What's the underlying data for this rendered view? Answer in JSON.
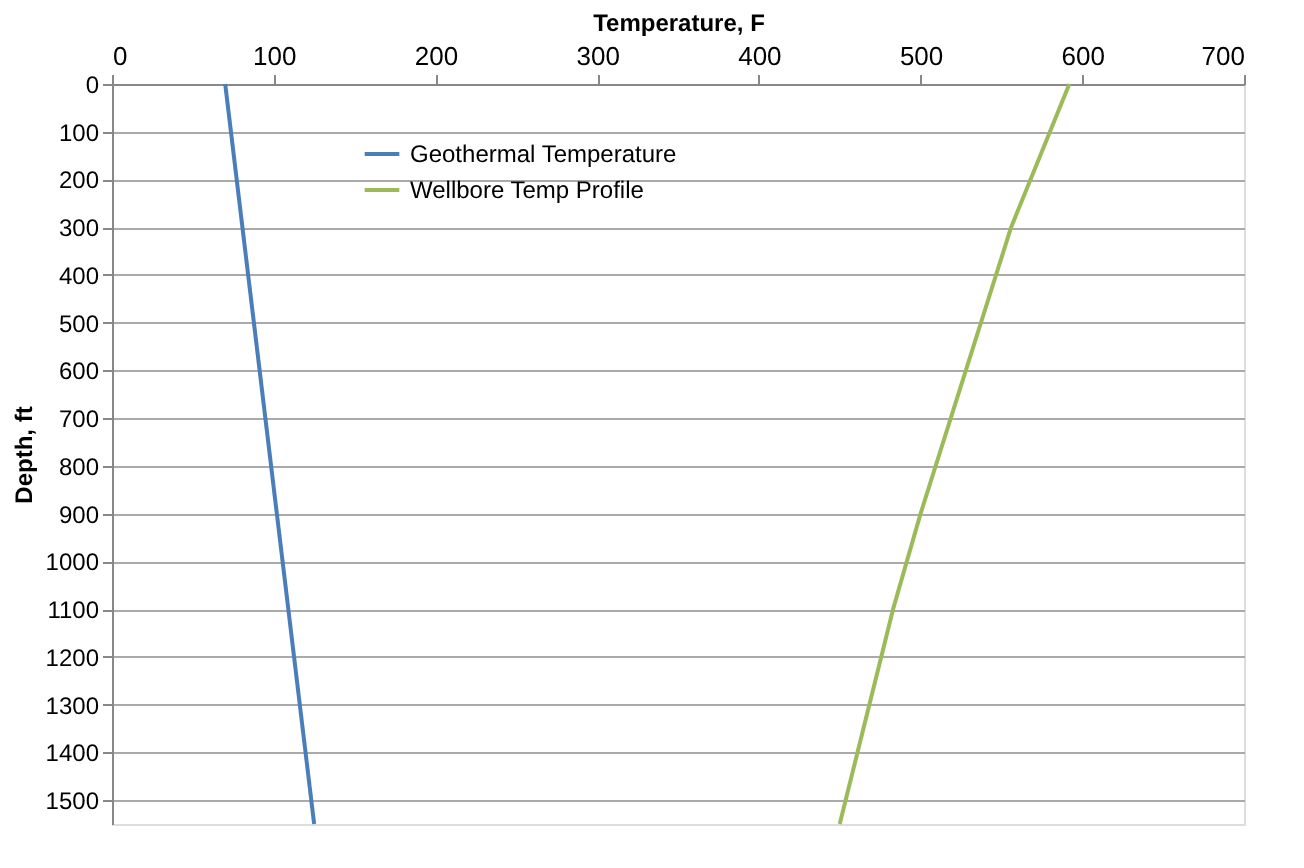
{
  "chart_data": {
    "type": "line",
    "xlabel": "Temperature, F",
    "ylabel": "Depth, ft",
    "xlim": [
      0,
      700
    ],
    "xticks": [
      0,
      100,
      200,
      300,
      400,
      500,
      600,
      700
    ],
    "ylim": [
      1550,
      0
    ],
    "yticks": [
      0,
      100,
      200,
      300,
      400,
      500,
      600,
      700,
      800,
      900,
      1000,
      1100,
      1200,
      1300,
      1400,
      1500
    ],
    "grid": "y",
    "legend": "top left",
    "marker": "none",
    "line_style": "solid",
    "series": [
      {
        "name": "Geothermal Temperature",
        "color": "#4a7ebb",
        "x": [
          70,
          125
        ],
        "values": [
          0,
          1550
        ]
      },
      {
        "name": "Wellbore Temp Profile",
        "color": "#9bbb59",
        "x": [
          592,
          556,
          528,
          500,
          483,
          450
        ],
        "values": [
          0,
          300,
          600,
          900,
          1100,
          1550
        ]
      }
    ]
  }
}
